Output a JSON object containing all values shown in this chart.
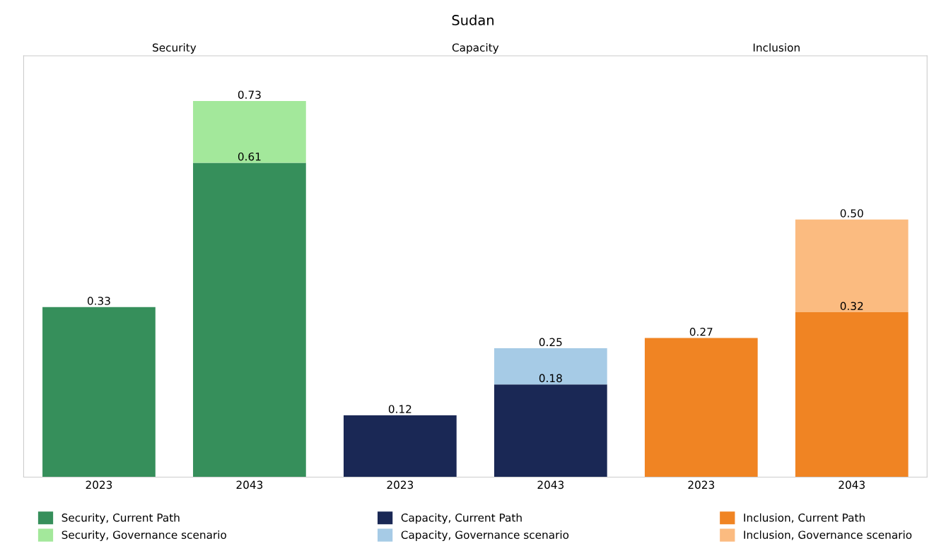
{
  "chart_data": {
    "type": "bar",
    "title": "Sudan",
    "stacked": true,
    "totals": [
      null,
      "0.73",
      null,
      "0.25",
      null,
      "0.50"
    ],
    "legend": "bottom",
    "grid": false,
    "categories": [
      "2023",
      "2043",
      "2023",
      "2043",
      "2023",
      "2043"
    ],
    "annotations": [
      "Security",
      "Capacity",
      "Inclusion"
    ],
    "series": [
      {
        "name": "Security, Current Path",
        "color": "#368f5b",
        "values": [
          0.33,
          0.61,
          null,
          null,
          null,
          null
        ],
        "value_labels": [
          "0.33",
          "0.61",
          null,
          null,
          null,
          null
        ]
      },
      {
        "name": "Security, Governance scenario",
        "color": "#a3e89b",
        "values": [
          null,
          0.12,
          null,
          null,
          null,
          null
        ]
      },
      {
        "name": "Capacity, Current Path",
        "color": "#1a2855",
        "values": [
          null,
          null,
          0.12,
          0.18,
          null,
          null
        ],
        "value_labels": [
          null,
          null,
          "0.12",
          "0.18",
          null,
          null
        ]
      },
      {
        "name": "Capacity, Governance scenario",
        "color": "#a6cbe6",
        "values": [
          null,
          null,
          null,
          0.07,
          null,
          null
        ]
      },
      {
        "name": "Inclusion, Current Path",
        "color": "#f08423",
        "values": [
          null,
          null,
          null,
          null,
          0.27,
          0.32
        ],
        "value_labels": [
          null,
          null,
          null,
          null,
          "0.27",
          "0.32"
        ]
      },
      {
        "name": "Inclusion, Governance scenario",
        "color": "#fbbb80",
        "values": [
          null,
          null,
          null,
          null,
          null,
          0.18
        ]
      }
    ]
  }
}
